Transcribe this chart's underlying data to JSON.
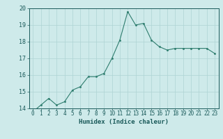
{
  "x": [
    0,
    1,
    2,
    3,
    4,
    5,
    6,
    7,
    8,
    9,
    10,
    11,
    12,
    13,
    14,
    15,
    16,
    17,
    18,
    19,
    20,
    21,
    22,
    23
  ],
  "y": [
    13.8,
    14.2,
    14.6,
    14.2,
    14.4,
    15.1,
    15.3,
    15.9,
    15.9,
    16.1,
    17.0,
    18.1,
    19.8,
    19.0,
    19.1,
    18.1,
    17.7,
    17.5,
    17.6,
    17.6,
    17.6,
    17.6,
    17.6,
    17.3
  ],
  "xlabel": "Humidex (Indice chaleur)",
  "ylim": [
    14,
    20
  ],
  "xlim_min": -0.5,
  "xlim_max": 23.5,
  "yticks": [
    14,
    15,
    16,
    17,
    18,
    19,
    20
  ],
  "xticks": [
    0,
    1,
    2,
    3,
    4,
    5,
    6,
    7,
    8,
    9,
    10,
    11,
    12,
    13,
    14,
    15,
    16,
    17,
    18,
    19,
    20,
    21,
    22,
    23
  ],
  "line_color": "#2e7d6e",
  "marker_color": "#2e7d6e",
  "bg_color": "#ceeaea",
  "grid_color": "#aed4d4",
  "text_color": "#1a5a5a",
  "tick_fontsize": 5.5,
  "xlabel_fontsize": 6.5
}
